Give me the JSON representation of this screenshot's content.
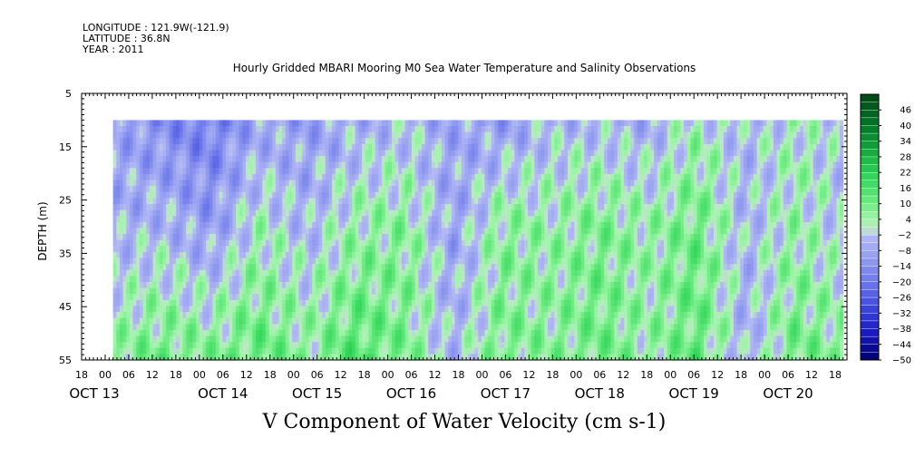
{
  "header": {
    "longitude": "LONGITUDE : 121.9W(-121.9)",
    "latitude": "LATITUDE : 36.8N",
    "year": "YEAR : 2011"
  },
  "chart_data": {
    "type": "heatmap",
    "title": "Hourly Gridded MBARI Mooring M0 Sea Water Temperature and Salinity Observations",
    "xlabel": "V Component of Water Velocity (cm s-1)",
    "ylabel": "DEPTH (m)",
    "ylim": [
      55,
      5
    ],
    "y_ticks": [
      5,
      15,
      25,
      35,
      45,
      55
    ],
    "x_hour_ticks": [
      "18",
      "00",
      "06",
      "12",
      "18",
      "00",
      "06",
      "12",
      "18",
      "00",
      "06",
      "12",
      "18",
      "00",
      "06",
      "12",
      "18",
      "00",
      "06",
      "12",
      "18",
      "00",
      "06",
      "12",
      "18",
      "00",
      "06",
      "12",
      "18",
      "00",
      "06",
      "12",
      "18"
    ],
    "x_day_labels": [
      "OCT 13",
      "OCT 14",
      "OCT 15",
      "OCT 16",
      "OCT 17",
      "OCT 18",
      "OCT 19",
      "OCT 20"
    ],
    "xlim": [
      "2011-10-12T18:00",
      "2011-10-20T21:00"
    ],
    "data_time_range": [
      "2011-10-13T02:00",
      "2011-10-20T20:00"
    ],
    "data_depth_range": [
      10,
      55
    ],
    "colorbar": {
      "labels": [
        46,
        40,
        34,
        28,
        22,
        16,
        10,
        4,
        -2,
        -8,
        -14,
        -20,
        -26,
        -32,
        -38,
        -44,
        -50
      ],
      "range": [
        -50,
        52
      ]
    },
    "field_v_cm_s": {
      "days": [
        "OCT 13 00",
        "OCT 13 12",
        "OCT 14 00",
        "OCT 14 12",
        "OCT 15 00",
        "OCT 15 12",
        "OCT 16 00",
        "OCT 16 12",
        "OCT 17 00",
        "OCT 17 12",
        "OCT 18 00",
        "OCT 18 12",
        "OCT 19 00",
        "OCT 19 12",
        "OCT 20 00",
        "OCT 20 12"
      ],
      "depth_10m": [
        -8,
        -14,
        -18,
        -8,
        -10,
        -6,
        -4,
        -8,
        -10,
        -4,
        -4,
        -6,
        2,
        -4,
        2,
        -2
      ],
      "depth_30m": [
        -6,
        -4,
        -10,
        2,
        -4,
        4,
        6,
        -8,
        6,
        4,
        8,
        4,
        10,
        -4,
        4,
        -2
      ],
      "depth_50m": [
        6,
        10,
        8,
        12,
        6,
        14,
        8,
        -4,
        8,
        6,
        10,
        4,
        12,
        -6,
        10,
        6
      ]
    }
  }
}
